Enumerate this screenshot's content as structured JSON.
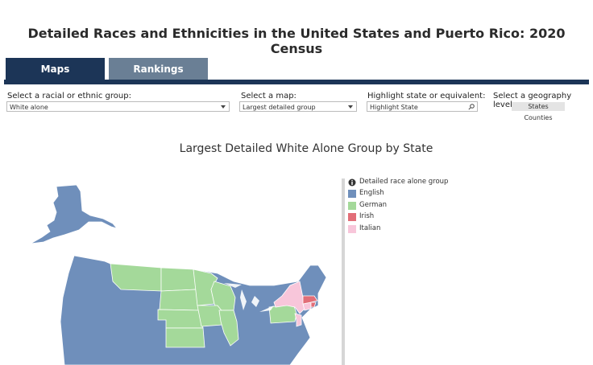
{
  "header": {
    "title": "Detailed Races and Ethnicities in the United States and Puerto Rico: 2020 Census"
  },
  "tabs": [
    "Maps",
    "Rankings"
  ],
  "controls": {
    "group": {
      "label": "Select a racial or ethnic group:",
      "value": "White alone"
    },
    "map": {
      "label": "Select a map:",
      "value": "Largest detailed group"
    },
    "highlight": {
      "label": "Highlight state or equivalent:",
      "placeholder": "Highlight State"
    },
    "geography": {
      "label": "Select a geography level:",
      "options": [
        "States",
        "Counties"
      ]
    }
  },
  "map": {
    "title": "Largest Detailed White Alone Group by State"
  },
  "legend": {
    "title": "Detailed race alone group",
    "items": [
      {
        "label": "English",
        "color": "#6f8fbb"
      },
      {
        "label": "German",
        "color": "#a4d99a"
      },
      {
        "label": "Irish",
        "color": "#e26e78"
      },
      {
        "label": "Italian",
        "color": "#f8c6da"
      }
    ]
  }
}
